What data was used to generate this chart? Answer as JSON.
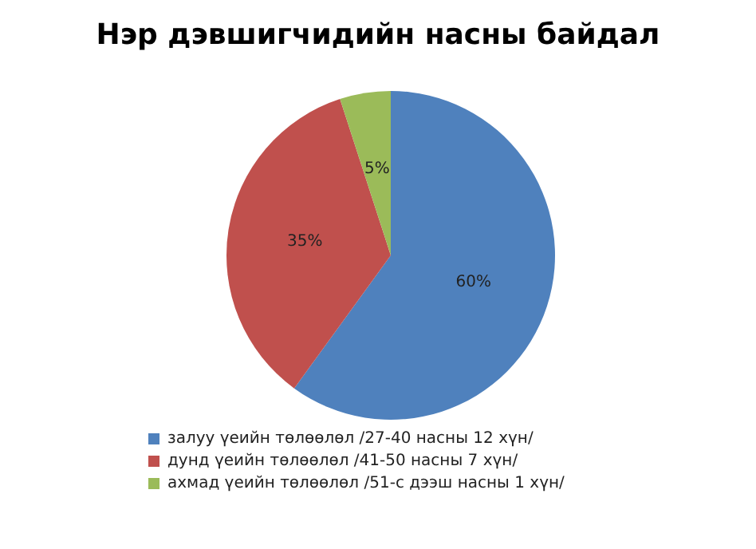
{
  "chart_data": {
    "type": "pie",
    "title": "Нэр дэвшигчидийн насны байдал",
    "categories": [
      "залуу үеийн төлөөлөл /27-40 насны 12 хүн/",
      "дунд үеийн төлөөлөл /41-50 насны 7 хүн/",
      "ахмад үеийн төлөөлөл /51-с дээш насны 1 хүн/"
    ],
    "values": [
      60,
      35,
      5
    ],
    "colors": [
      "#4f81bd",
      "#c0504d",
      "#9bbb59"
    ],
    "value_labels": [
      "60%",
      "35%",
      "5%"
    ],
    "legend": "bottom"
  }
}
